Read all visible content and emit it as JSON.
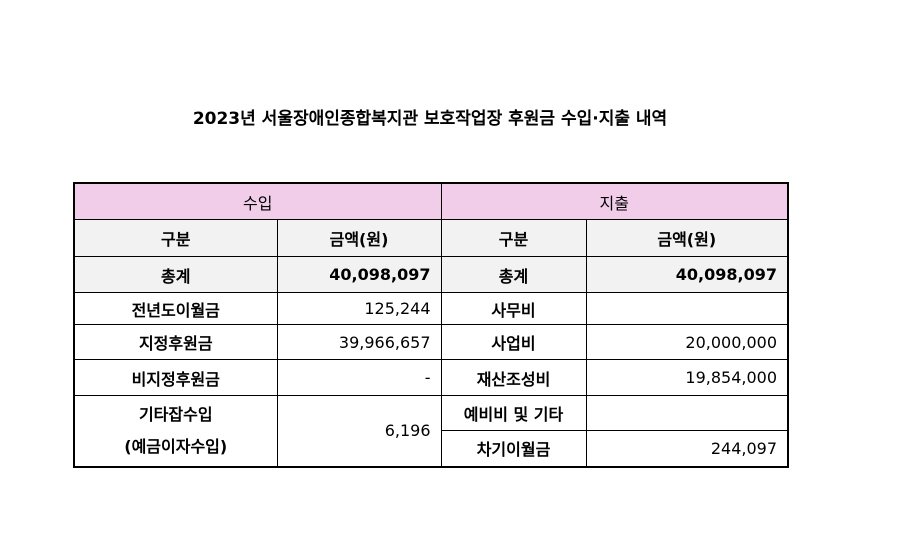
{
  "title": "2023년 서울장애인종합복지관 보호작업장 후원금 수입·지출 내역",
  "table": {
    "section_headers": [
      "수입",
      "지출"
    ],
    "column_headers": [
      "구분",
      "금액(원)",
      "구분",
      "금액(원)"
    ],
    "total": {
      "income": {
        "label": "총계",
        "amount": "40,098,097"
      },
      "expense": {
        "label": "총계",
        "amount": "40,098,097"
      }
    },
    "income": [
      {
        "label": [
          "전년도이월금"
        ],
        "amount": "125,244"
      },
      {
        "label": [
          "지정후원금"
        ],
        "amount": "39,966,657"
      },
      {
        "label": [
          "비지정후원금"
        ],
        "amount": "-"
      },
      {
        "label": [
          "기타잡수입",
          "(예금이자수입)"
        ],
        "amount": "6,196"
      }
    ],
    "expense": [
      {
        "label": "사무비"
      },
      {
        "label": "사업비",
        "amount": "20,000,000"
      },
      {
        "label": "재산조성비",
        "amount": "19,854,000"
      },
      {
        "label": "예비비 및 기타"
      },
      {
        "label": "차기이월금",
        "amount": "244,097"
      }
    ]
  }
}
